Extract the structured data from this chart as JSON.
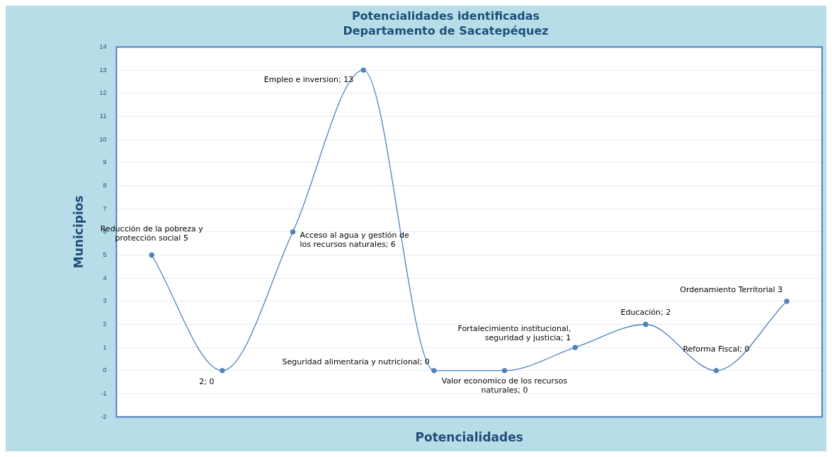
{
  "chart_data": {
    "type": "line",
    "title": "Potencialidades identificadas",
    "subtitle": "Departamento de Sacatepéquez",
    "xlabel": "Potencialidades",
    "ylabel": "Municipios",
    "categories": [
      null,
      null,
      null,
      null,
      null,
      null,
      null,
      null,
      null,
      null
    ],
    "series": [
      {
        "color": "#4f81bd",
        "values": [
          5,
          0,
          6,
          13,
          0,
          0,
          1,
          2,
          0,
          3
        ],
        "value_labels": [
          "Reducción de la pobreza y protección social 5",
          "2; 0",
          "Acceso al agua y gestión de los recursos naturales; 6",
          "Empleo e inversion; 13",
          "Seguridad alimentaria y nutricional; 0",
          "Valor economico de los recursos naturales; 0",
          "Fortalecimiento institucional, seguridad y justicia; 1",
          "Educación; 2",
          "Reforma Fiscal; 0",
          "Ordenamiento Territorial 3"
        ]
      }
    ],
    "ylim": [
      -2,
      14
    ],
    "yticks": [
      -2,
      -1,
      0,
      1,
      2,
      3,
      4,
      5,
      6,
      7,
      8,
      9,
      10,
      11,
      12,
      13,
      14
    ],
    "grid": "y",
    "marker": "circle",
    "data_labels": false
  }
}
